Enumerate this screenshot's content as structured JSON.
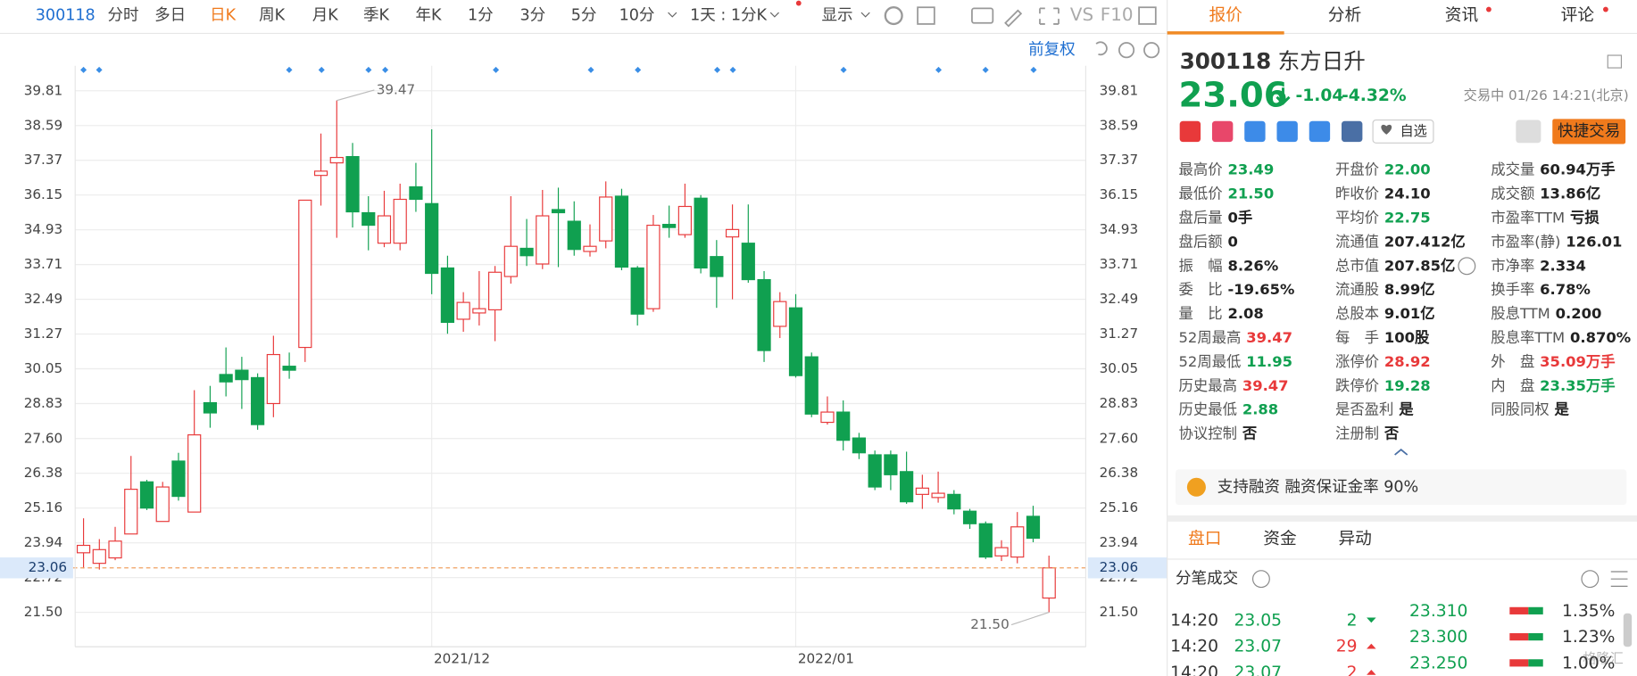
{
  "toolbar": {
    "code": "300118",
    "periods": [
      "分时",
      "多日",
      "日K",
      "周K",
      "月K",
      "季K",
      "年K",
      "1分",
      "3分",
      "5分",
      "10分"
    ],
    "interval": "1天 : 1分K",
    "display": "显示",
    "vs": "VS",
    "f10": "F10",
    "adjust": "前复权"
  },
  "chart_data": {
    "type": "candlestick",
    "categories": [
      null,
      null,
      null,
      null,
      null,
      null,
      null,
      null,
      null,
      null,
      null,
      null,
      null,
      null,
      null,
      null,
      null,
      null,
      null,
      null,
      null,
      null,
      "2021/12",
      null,
      null,
      null,
      null,
      null,
      null,
      null,
      null,
      null,
      null,
      null,
      null,
      null,
      null,
      null,
      null,
      null,
      null,
      null,
      null,
      null,
      null,
      "2022/01",
      null,
      null,
      null,
      null,
      null,
      null,
      null,
      null,
      null,
      null,
      null,
      null,
      null,
      null,
      null,
      null
    ],
    "open": [
      23.59,
      23.22,
      23.41,
      24.25,
      26.08,
      24.69,
      26.81,
      25.02,
      28.86,
      29.85,
      30.0,
      29.74,
      28.83,
      30.14,
      30.8,
      36.84,
      37.28,
      37.5,
      35.53,
      34.46,
      34.46,
      36.44,
      35.85,
      33.59,
      31.79,
      32.01,
      32.12,
      33.29,
      34.28,
      33.73,
      35.64,
      35.23,
      34.17,
      34.54,
      36.11,
      33.59,
      32.16,
      35.12,
      34.76,
      36.04,
      33.99,
      34.68,
      34.46,
      33.18,
      31.54,
      32.19,
      30.47,
      28.17,
      28.53,
      27.62,
      27.03,
      27.03,
      26.44,
      25.64,
      25.53,
      25.64,
      25.05,
      24.61,
      23.48,
      23.44,
      24.87,
      22.0
    ],
    "high": [
      24.8,
      24.07,
      24.5,
      26.99,
      26.15,
      26.08,
      27.1,
      29.3,
      29.45,
      30.8,
      30.47,
      29.89,
      31.21,
      30.62,
      35.97,
      38.31,
      39.47,
      37.98,
      36.11,
      36.3,
      36.55,
      37.28,
      38.46,
      34.02,
      32.74,
      33.48,
      33.66,
      36.11,
      35.31,
      36.33,
      36.41,
      35.93,
      35.12,
      36.63,
      36.37,
      33.66,
      35.45,
      35.78,
      36.55,
      36.15,
      34.57,
      35.82,
      35.82,
      33.48,
      32.74,
      32.67,
      30.62,
      29.08,
      28.94,
      27.8,
      27.18,
      27.18,
      27.14,
      26.33,
      26.44,
      25.79,
      25.13,
      24.69,
      24.03,
      25.02,
      25.24,
      23.49
    ],
    "low": [
      23.04,
      23.0,
      23.33,
      24.25,
      25.09,
      24.69,
      25.42,
      25.02,
      27.98,
      29.08,
      28.64,
      27.91,
      28.35,
      29.7,
      30.29,
      35.78,
      34.65,
      35.01,
      34.21,
      34.32,
      34.21,
      35.56,
      32.67,
      31.28,
      31.35,
      31.57,
      31.02,
      33.04,
      33.66,
      33.55,
      33.62,
      34.02,
      33.99,
      34.28,
      33.51,
      31.57,
      32.05,
      34.65,
      34.65,
      33.4,
      32.19,
      32.49,
      33.07,
      30.29,
      31.13,
      29.74,
      28.35,
      28.09,
      27.18,
      26.88,
      25.79,
      25.79,
      25.31,
      25.13,
      25.35,
      24.94,
      24.43,
      23.37,
      23.3,
      23.22,
      23.96,
      21.5
    ],
    "close": [
      23.85,
      23.7,
      24.0,
      25.82,
      25.16,
      25.9,
      25.57,
      27.73,
      28.5,
      29.59,
      29.67,
      28.09,
      30.55,
      30.0,
      35.97,
      36.99,
      37.47,
      35.56,
      35.09,
      35.42,
      36.0,
      36.0,
      33.4,
      31.68,
      32.38,
      32.16,
      33.44,
      34.35,
      34.02,
      35.42,
      35.53,
      34.24,
      34.35,
      36.08,
      33.62,
      31.97,
      35.09,
      35.01,
      35.75,
      33.59,
      33.29,
      34.94,
      33.18,
      30.69,
      32.41,
      29.81,
      28.46,
      28.53,
      27.54,
      27.1,
      25.9,
      26.33,
      25.38,
      25.86,
      25.68,
      25.13,
      24.61,
      23.44,
      23.77,
      24.5,
      24.1,
      23.06
    ],
    "up_color": "#e8393a",
    "down_color": "#10a050",
    "ylim": [
      20.29,
      40.69
    ],
    "yticks": [
      {
        "value": 21.5,
        "label": "21.50"
      },
      22.72,
      23.94,
      25.16,
      26.38,
      {
        "value": 27.6,
        "label": "27.60"
      },
      28.83,
      {
        "value": 30.05,
        "label": "30.05"
      },
      31.27,
      32.49,
      33.71,
      34.93,
      36.15,
      37.37,
      38.59,
      39.81
    ],
    "last_price": {
      "value": 23.06,
      "label": "23.06"
    },
    "annotations": [
      {
        "value": 39.47,
        "label": "39.47"
      },
      {
        "value": 21.5,
        "label": "21.50"
      }
    ],
    "grid": true
  },
  "tabs": [
    "报价",
    "分析",
    "资讯",
    "评论"
  ],
  "quote": {
    "code": "300118",
    "name": "东方日升",
    "price": "23.06",
    "change": "-1.04",
    "change_pct": "-4.32%",
    "status": "交易中 01/26 14:21(北京)",
    "watch": "自选",
    "trade": "快捷交易",
    "stats": [
      [
        {
          "label": "最高价",
          "value": "23.49"
        },
        {
          "label": "最低价",
          "value": "21.50"
        },
        {
          "label": "盘后量",
          "value": "0手"
        },
        {
          "label": "盘后额",
          "value": "0"
        },
        {
          "label": "振　幅",
          "value": "8.26%"
        },
        {
          "label": "委　比",
          "value": "-19.65%"
        },
        {
          "label": "量　比",
          "value": "2.08"
        },
        {
          "label": "52周最高",
          "value": "39.47"
        },
        {
          "label": "52周最低",
          "value": "11.95"
        },
        {
          "label": "历史最高",
          "value": "39.47"
        },
        {
          "label": "历史最低",
          "value": "2.88"
        },
        {
          "label": "协议控制",
          "value": "否"
        }
      ],
      [
        {
          "label": "开盘价",
          "value": "22.00"
        },
        {
          "label": "昨收价",
          "value": "24.10"
        },
        {
          "label": "平均价",
          "value": "22.75"
        },
        {
          "label": "流通值",
          "value": "207.412亿"
        },
        {
          "label": "总市值",
          "value": "207.85亿"
        },
        {
          "label": "流通股",
          "value": "8.99亿"
        },
        {
          "label": "总股本",
          "value": "9.01亿"
        },
        {
          "label": "每　手",
          "value": "100股"
        },
        {
          "label": "涨停价",
          "value": "28.92"
        },
        {
          "label": "跌停价",
          "value": "19.28"
        },
        {
          "label": "是否盈利",
          "value": "是"
        },
        {
          "label": "注册制",
          "value": "否"
        }
      ],
      [
        {
          "label": "成交量",
          "value": "60.94万手"
        },
        {
          "label": "成交额",
          "value": "13.86亿"
        },
        {
          "label": "市盈率TTM",
          "value": "亏损"
        },
        {
          "label": "市盈率(静)",
          "value": "126.01"
        },
        {
          "label": "市净率",
          "value": "2.334"
        },
        {
          "label": "换手率",
          "value": "6.78%"
        },
        {
          "label": "股息TTM",
          "value": "0.200"
        },
        {
          "label": "股息率TTM",
          "value": "0.870%"
        },
        {
          "label": "外　盘",
          "value": "35.09万手"
        },
        {
          "label": "内　盘",
          "value": "23.35万手"
        },
        {
          "label": "同股同权",
          "value": "是"
        }
      ]
    ],
    "margin": "支持融资 融资保证金率 90%"
  },
  "sub_tabs": [
    "盘口",
    "资金",
    "异动"
  ],
  "trades": {
    "title": "分笔成交",
    "rows": [
      [
        "14:20",
        "23.05",
        "2"
      ],
      [
        "14:20",
        "23.07",
        "29"
      ],
      [
        "14:20",
        "23.07",
        "2"
      ]
    ],
    "levels": [
      [
        "23.310",
        "1.35%"
      ],
      [
        "23.300",
        "1.23%"
      ],
      [
        "23.250",
        "1.00%"
      ]
    ]
  },
  "watermark": "格隆汇"
}
